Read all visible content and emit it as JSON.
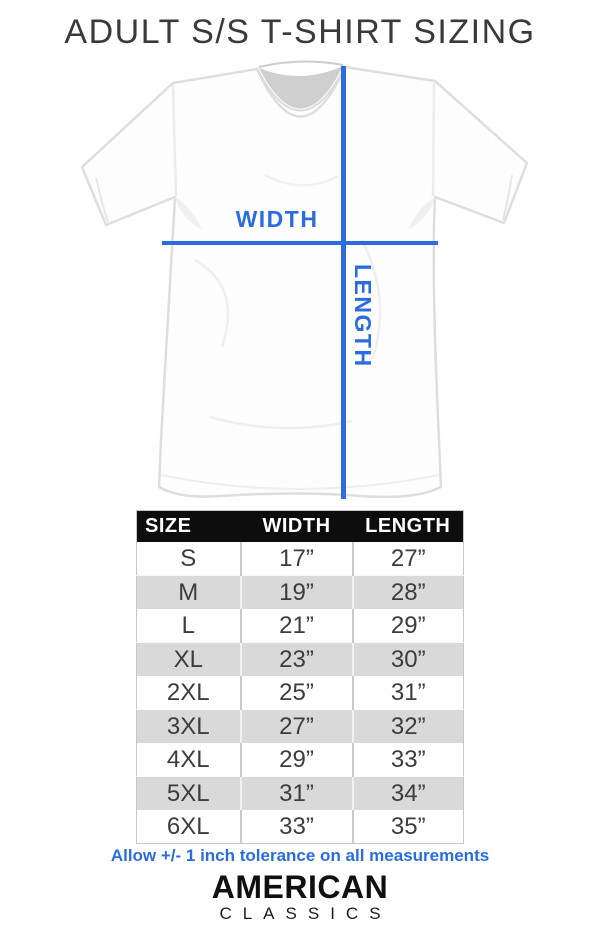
{
  "title": "ADULT S/S T-SHIRT SIZING",
  "colors": {
    "accent_blue": "#2b6de0",
    "header_bg": "#0d0d0d",
    "row_alt": "#d9d9d9"
  },
  "diagram": {
    "width_label": "WIDTH",
    "length_label": "LENGTH"
  },
  "table": {
    "headers": [
      "SIZE",
      "WIDTH",
      "LENGTH"
    ],
    "rows": [
      {
        "size": "S",
        "width": "17”",
        "length": "27”"
      },
      {
        "size": "M",
        "width": "19”",
        "length": "28”"
      },
      {
        "size": "L",
        "width": "21”",
        "length": "29”"
      },
      {
        "size": "XL",
        "width": "23”",
        "length": "30”"
      },
      {
        "size": "2XL",
        "width": "25”",
        "length": "31”"
      },
      {
        "size": "3XL",
        "width": "27”",
        "length": "32”"
      },
      {
        "size": "4XL",
        "width": "29”",
        "length": "33”"
      },
      {
        "size": "5XL",
        "width": "31”",
        "length": "34”"
      },
      {
        "size": "6XL",
        "width": "33”",
        "length": "35”"
      }
    ]
  },
  "note": "Allow +/- 1 inch tolerance on all measurements",
  "brand": {
    "name": "AMERICAN",
    "subname": "CLASSICS"
  }
}
